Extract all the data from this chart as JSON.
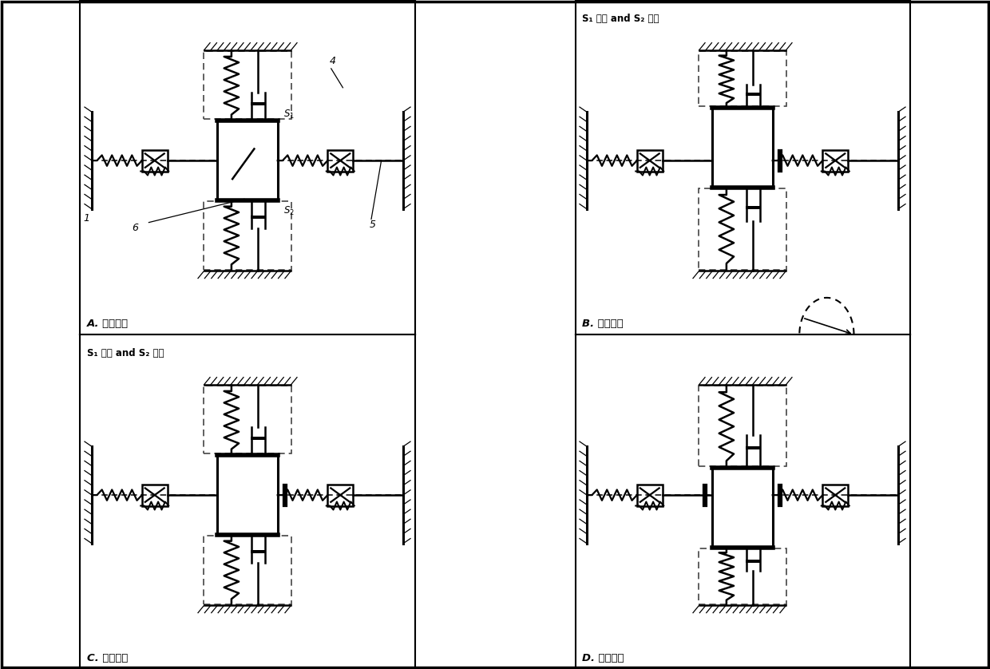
{
  "panel_labels": [
    "A. 初始状态",
    "B. 正极値点",
    "C. 零点位置",
    "D. 负极値点"
  ],
  "panel_B_title": "S₁ 闭合 and S₂ 断开",
  "panel_C_title": "S₁ 断开 and S₂ 闭合",
  "num_labels": [
    "1",
    "4",
    "5",
    "6"
  ],
  "bg_color": "#ffffff"
}
